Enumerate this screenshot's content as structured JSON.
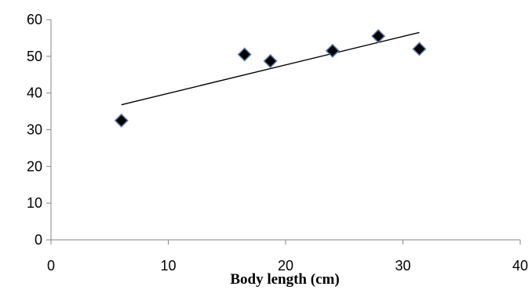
{
  "chart_data": {
    "type": "scatter",
    "title": "",
    "xlabel": "Body length (cm)",
    "ylabel": "",
    "xlim": [
      0,
      40
    ],
    "ylim": [
      0,
      60
    ],
    "xticks": [
      0,
      10,
      20,
      30,
      40
    ],
    "yticks": [
      0,
      10,
      20,
      30,
      40,
      50,
      60
    ],
    "grid": false,
    "legend": "none",
    "series": [
      {
        "x": [
          6.0,
          16.5,
          18.7,
          24.0,
          27.9,
          31.4
        ],
        "y": [
          32.5,
          50.5,
          48.7,
          51.5,
          55.5,
          52.0
        ]
      }
    ],
    "trendline": {
      "x": [
        6.0,
        31.4
      ],
      "y": [
        36.8,
        56.5
      ]
    },
    "colors": {
      "marker_fill": "#000000",
      "marker_edge": "#5b7fb0",
      "axis": "#868686",
      "trendline": "#000000"
    }
  }
}
